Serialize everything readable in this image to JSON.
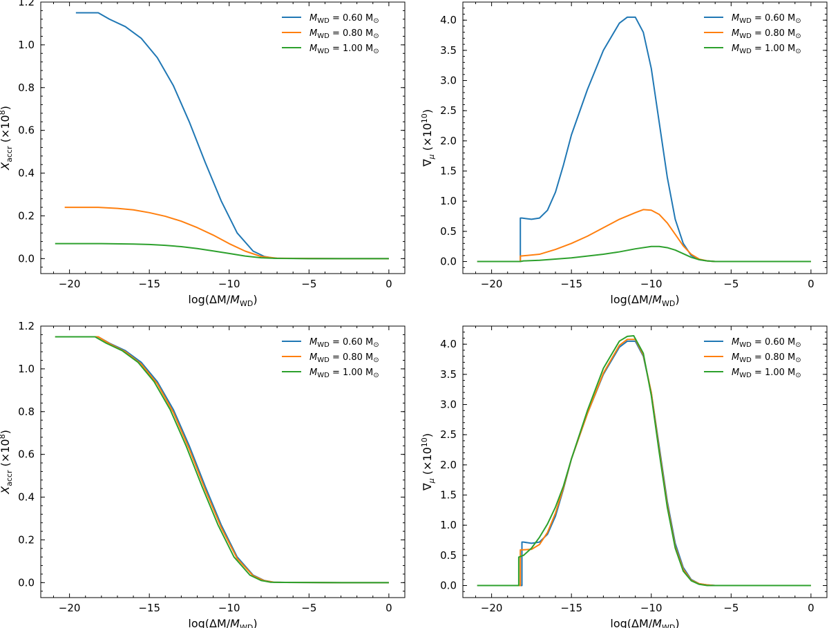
{
  "colors": {
    "blue": "#1f77b4",
    "orange": "#ff7f0e",
    "green": "#2ca02c"
  },
  "legend": [
    "M_WD = 0.60 M⊙",
    "M_WD = 0.80 M⊙",
    "M_WD = 1.00 M⊙"
  ],
  "chart_data": [
    {
      "type": "line",
      "panel": "top-left",
      "xlabel": "log(ΔM/M_WD)",
      "ylabel": "X_accr (×10^8)",
      "xlim": [
        -21.8,
        1.0
      ],
      "ylim": [
        -0.07,
        1.2
      ],
      "xticks": [
        -20,
        -15,
        -10,
        -5,
        0
      ],
      "yticks": [
        0.0,
        0.2,
        0.4,
        0.6,
        0.8,
        1.0,
        1.2
      ],
      "legend_position": "top-right",
      "series": [
        {
          "name": "M_WD = 0.60 M⊙",
          "color": "blue",
          "x": [
            -19.6,
            -18.2,
            -17.5,
            -16.5,
            -15.5,
            -14.5,
            -13.5,
            -12.5,
            -11.5,
            -10.5,
            -9.5,
            -8.5,
            -7.8,
            -7.2,
            -6.5,
            -5,
            -3,
            0
          ],
          "y": [
            1.15,
            1.15,
            1.12,
            1.085,
            1.03,
            0.94,
            0.81,
            0.64,
            0.45,
            0.27,
            0.12,
            0.035,
            0.01,
            0.002,
            0.001,
            0.0005,
            0.0,
            0.0
          ]
        },
        {
          "name": "M_WD = 0.80 M⊙",
          "color": "orange",
          "x": [
            -20.3,
            -18.2,
            -17,
            -16,
            -15,
            -14,
            -13,
            -12,
            -11,
            -10,
            -9,
            -8,
            -7,
            -6,
            -5,
            -3,
            0
          ],
          "y": [
            0.24,
            0.24,
            0.235,
            0.228,
            0.215,
            0.198,
            0.175,
            0.145,
            0.11,
            0.07,
            0.035,
            0.01,
            0.002,
            0.001,
            0.0005,
            0.0,
            0.0
          ]
        },
        {
          "name": "M_WD = 1.00 M⊙",
          "color": "green",
          "x": [
            -20.9,
            -18,
            -16,
            -15,
            -14,
            -13,
            -12,
            -11,
            -10,
            -9,
            -8,
            -7,
            -6,
            -5,
            -3,
            0
          ],
          "y": [
            0.07,
            0.07,
            0.068,
            0.066,
            0.062,
            0.056,
            0.047,
            0.036,
            0.024,
            0.012,
            0.004,
            0.001,
            0.0005,
            0.0,
            0.0,
            0.0
          ]
        }
      ]
    },
    {
      "type": "line",
      "panel": "top-right",
      "xlabel": "log(ΔM/M_WD)",
      "ylabel": "∇μ (×10^10)",
      "xlim": [
        -21.8,
        1.0
      ],
      "ylim": [
        -0.2,
        4.3
      ],
      "xticks": [
        -20,
        -15,
        -10,
        -5,
        0
      ],
      "yticks": [
        0.0,
        0.5,
        1.0,
        1.5,
        2.0,
        2.5,
        3.0,
        3.5,
        4.0
      ],
      "legend_position": "top-right",
      "series": [
        {
          "name": "M_WD = 0.60 M⊙",
          "color": "blue",
          "x": [
            -20.9,
            -18.2,
            -18.2,
            -18.1,
            -17.5,
            -17,
            -16.5,
            -16,
            -15.5,
            -15,
            -14,
            -13,
            -12,
            -11.5,
            -11,
            -10.5,
            -10,
            -9.5,
            -9,
            -8.5,
            -8,
            -7.5,
            -7,
            -6.5,
            -6,
            -5,
            0
          ],
          "y": [
            0.0,
            0.0,
            0.72,
            0.72,
            0.7,
            0.72,
            0.85,
            1.15,
            1.6,
            2.1,
            2.85,
            3.5,
            3.95,
            4.05,
            4.05,
            3.8,
            3.2,
            2.3,
            1.4,
            0.7,
            0.3,
            0.1,
            0.03,
            0.01,
            0.0,
            0.0,
            0.0
          ]
        },
        {
          "name": "M_WD = 0.80 M⊙",
          "color": "orange",
          "x": [
            -20.9,
            -18.2,
            -18.2,
            -17,
            -16,
            -15,
            -14,
            -13,
            -12,
            -11,
            -10.5,
            -10,
            -9.5,
            -9,
            -8.5,
            -8,
            -7.5,
            -7,
            -6.5,
            -6,
            -5,
            0
          ],
          "y": [
            0.0,
            0.0,
            0.09,
            0.12,
            0.2,
            0.3,
            0.42,
            0.56,
            0.7,
            0.81,
            0.86,
            0.85,
            0.78,
            0.64,
            0.45,
            0.26,
            0.12,
            0.04,
            0.01,
            0.0,
            0.0,
            0.0
          ]
        },
        {
          "name": "M_WD = 1.00 M⊙",
          "color": "green",
          "x": [
            -20.9,
            -18.2,
            -18,
            -17,
            -16,
            -15,
            -14,
            -13,
            -12,
            -11,
            -10,
            -9.5,
            -9,
            -8.5,
            -8,
            -7.5,
            -7,
            -6.5,
            -6,
            -5,
            0
          ],
          "y": [
            0.0,
            0.0,
            0.01,
            0.02,
            0.04,
            0.06,
            0.09,
            0.12,
            0.16,
            0.21,
            0.25,
            0.25,
            0.23,
            0.19,
            0.13,
            0.07,
            0.03,
            0.01,
            0.0,
            0.0,
            0.0
          ]
        }
      ]
    },
    {
      "type": "line",
      "panel": "bottom-left",
      "xlabel": "log(ΔM/M_WD)",
      "ylabel": "X_accr (×10^8)",
      "xlim": [
        -21.8,
        1.0
      ],
      "ylim": [
        -0.07,
        1.2
      ],
      "xticks": [
        -20,
        -15,
        -10,
        -5,
        0
      ],
      "yticks": [
        0.0,
        0.2,
        0.4,
        0.6,
        0.8,
        1.0,
        1.2
      ],
      "legend_position": "top-right",
      "series": [
        {
          "name": "M_WD = 0.60 M⊙",
          "color": "blue",
          "x": [
            -18.2,
            -17.5,
            -16.5,
            -15.5,
            -14.5,
            -13.5,
            -12.5,
            -11.5,
            -10.5,
            -9.5,
            -8.5,
            -7.8,
            -7.2,
            -6.5,
            -5,
            -3,
            0
          ],
          "y": [
            1.15,
            1.12,
            1.085,
            1.03,
            0.94,
            0.81,
            0.64,
            0.45,
            0.27,
            0.12,
            0.035,
            0.01,
            0.002,
            0.001,
            0.0005,
            0.0,
            0.0
          ]
        },
        {
          "name": "M_WD = 0.80 M⊙",
          "color": "orange",
          "x": [
            -20.9,
            -18.2,
            -17.5,
            -16.5,
            -15.5,
            -14.5,
            -13.5,
            -12.5,
            -11.5,
            -10.5,
            -9.5,
            -8.5,
            -7.8,
            -7.2,
            -6.5,
            -5,
            -3,
            0
          ],
          "y": [
            1.15,
            1.15,
            1.118,
            1.08,
            1.022,
            0.93,
            0.797,
            0.625,
            0.435,
            0.258,
            0.113,
            0.032,
            0.009,
            0.002,
            0.001,
            0.0005,
            0.0,
            0.0
          ]
        },
        {
          "name": "M_WD = 1.00 M⊙",
          "color": "green",
          "x": [
            -20.9,
            -18.4,
            -17.7,
            -16.7,
            -15.7,
            -14.7,
            -13.7,
            -12.7,
            -11.7,
            -10.7,
            -9.7,
            -8.7,
            -8.0,
            -7.4,
            -6.7,
            -5,
            -3,
            0
          ],
          "y": [
            1.15,
            1.15,
            1.12,
            1.085,
            1.03,
            0.94,
            0.81,
            0.64,
            0.45,
            0.27,
            0.12,
            0.035,
            0.01,
            0.002,
            0.001,
            0.0005,
            0.0,
            0.0
          ]
        }
      ]
    },
    {
      "type": "line",
      "panel": "bottom-right",
      "xlabel": "log(ΔM/M_WD)",
      "ylabel": "∇μ (×10^10)",
      "xlim": [
        -21.8,
        1.0
      ],
      "ylim": [
        -0.2,
        4.3
      ],
      "xticks": [
        -20,
        -15,
        -10,
        -5,
        0
      ],
      "yticks": [
        0.0,
        0.5,
        1.0,
        1.5,
        2.0,
        2.5,
        3.0,
        3.5,
        4.0
      ],
      "legend_position": "top-right",
      "series": [
        {
          "name": "M_WD = 0.60 M⊙",
          "color": "blue",
          "x": [
            -20.9,
            -18.1,
            -18.1,
            -18.0,
            -17.5,
            -17,
            -16.5,
            -16,
            -15.5,
            -15,
            -14,
            -13,
            -12,
            -11.5,
            -11,
            -10.5,
            -10,
            -9.5,
            -9,
            -8.5,
            -8,
            -7.5,
            -7,
            -6.5,
            -6,
            -5,
            0
          ],
          "y": [
            0.0,
            0.0,
            0.72,
            0.72,
            0.7,
            0.72,
            0.85,
            1.15,
            1.6,
            2.1,
            2.85,
            3.5,
            3.95,
            4.05,
            4.05,
            3.8,
            3.2,
            2.3,
            1.4,
            0.7,
            0.3,
            0.1,
            0.03,
            0.01,
            0.0,
            0.0,
            0.0
          ]
        },
        {
          "name": "M_WD = 0.80 M⊙",
          "color": "orange",
          "x": [
            -20.9,
            -18.2,
            -18.2,
            -17.5,
            -17,
            -16.5,
            -16,
            -15.5,
            -15,
            -14,
            -13,
            -12,
            -11.5,
            -11,
            -10.5,
            -10,
            -9.5,
            -9,
            -8.5,
            -8,
            -7.5,
            -7,
            -6.5,
            -6,
            -5,
            0
          ],
          "y": [
            0.0,
            0.0,
            0.59,
            0.6,
            0.68,
            0.88,
            1.2,
            1.62,
            2.1,
            2.85,
            3.52,
            3.98,
            4.08,
            4.08,
            3.82,
            3.2,
            2.25,
            1.35,
            0.65,
            0.27,
            0.09,
            0.03,
            0.01,
            0.0,
            0.0,
            0.0
          ]
        },
        {
          "name": "M_WD = 1.00 M⊙",
          "color": "green",
          "x": [
            -20.9,
            -18.3,
            -18.3,
            -18.0,
            -17.5,
            -17,
            -16.5,
            -16,
            -15.5,
            -15,
            -14,
            -13,
            -12,
            -11.5,
            -11.1,
            -10.5,
            -10,
            -9.5,
            -9,
            -8.5,
            -8,
            -7.5,
            -7,
            -6.5,
            -6,
            -5,
            0
          ],
          "y": [
            0.0,
            0.0,
            0.47,
            0.5,
            0.62,
            0.8,
            1.02,
            1.3,
            1.65,
            2.1,
            2.9,
            3.6,
            4.05,
            4.13,
            4.14,
            3.85,
            3.15,
            2.2,
            1.3,
            0.62,
            0.24,
            0.08,
            0.02,
            0.0,
            0.0,
            0.0,
            0.0
          ]
        }
      ]
    }
  ]
}
